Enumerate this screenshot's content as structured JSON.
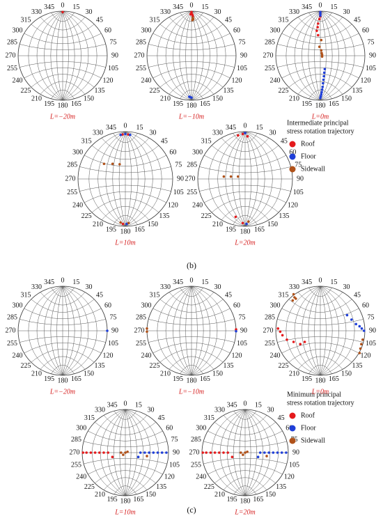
{
  "chart_data": [
    {
      "type": "stereonet",
      "title": "L=−20m",
      "xlim": [
        -1,
        1
      ],
      "ylim": [
        -1,
        1
      ],
      "xticks": [
        0,
        15,
        30,
        45,
        60,
        75,
        90,
        105,
        120,
        135,
        150,
        165,
        180,
        195,
        210,
        225,
        240,
        255,
        270,
        285,
        300,
        315,
        330,
        345
      ],
      "series": [
        {
          "name": "Roof",
          "color": "#e41a1c",
          "x": [
            0
          ],
          "values": [
            0.98
          ]
        }
      ]
    },
    {
      "type": "stereonet",
      "title": "L=−10m",
      "xlim": [
        -1,
        1
      ],
      "ylim": [
        -1,
        1
      ],
      "xticks": [
        0,
        15,
        30,
        45,
        60,
        75,
        90,
        105,
        120,
        135,
        150,
        165,
        180,
        195,
        210,
        225,
        240,
        255,
        270,
        285,
        300,
        315,
        330,
        345
      ],
      "series": [
        {
          "name": "Roof",
          "color": "#e41a1c",
          "x": [
            0,
            0,
            0.02,
            0.03,
            -0.02
          ],
          "values": [
            0.98,
            0.95,
            0.92,
            0.88,
            0.93
          ]
        },
        {
          "name": "Floor",
          "color": "#1f3fd8",
          "x": [
            -0.05,
            -0.03,
            0
          ],
          "values": [
            -0.92,
            -0.93,
            -0.94
          ]
        },
        {
          "name": "Sidewall",
          "color": "#b0521a",
          "x": [
            0.03,
            0.04,
            0.02
          ],
          "values": [
            0.85,
            0.82,
            0.8
          ]
        }
      ]
    },
    {
      "type": "stereonet",
      "title": "L=0m",
      "xlim": [
        -1,
        1
      ],
      "ylim": [
        -1,
        1
      ],
      "xticks": [
        0,
        15,
        30,
        45,
        60,
        75,
        90,
        105,
        120,
        135,
        150,
        165,
        180,
        195,
        210,
        225,
        240,
        255,
        270,
        285,
        300,
        315,
        330,
        345
      ],
      "series": [
        {
          "name": "Roof",
          "color": "#e41a1c",
          "x": [
            0,
            0,
            0,
            -0.02,
            -0.05,
            -0.06,
            -0.08,
            -0.05
          ],
          "values": [
            0.98,
            0.93,
            0.88,
            0.82,
            0.72,
            0.64,
            0.56,
            0.46
          ]
        },
        {
          "name": "Floor",
          "color": "#1f3fd8",
          "x": [
            0,
            0,
            0,
            0.1,
            0.09,
            0.08,
            0.07,
            0.06,
            0.05,
            0.04,
            0.03,
            0.02,
            0.01,
            0
          ],
          "values": [
            0.98,
            0.94,
            0.9,
            -0.3,
            -0.38,
            -0.46,
            -0.54,
            -0.62,
            -0.7,
            -0.76,
            -0.82,
            -0.87,
            -0.91,
            -0.95
          ]
        },
        {
          "name": "Sidewall",
          "color": "#b0521a",
          "x": [
            0.02,
            -0.02,
            0.02,
            0.03,
            0.04,
            0.04
          ],
          "values": [
            0.35,
            0.2,
            0.12,
            0.06,
            0.02,
            -0.02
          ]
        }
      ]
    },
    {
      "type": "stereonet",
      "title": "L=10m",
      "xlim": [
        -1,
        1
      ],
      "ylim": [
        -1,
        1
      ],
      "xticks": [
        0,
        15,
        30,
        45,
        60,
        75,
        90,
        105,
        120,
        135,
        150,
        165,
        180,
        195,
        210,
        225,
        240,
        255,
        270,
        285,
        300,
        315,
        330,
        345
      ],
      "series": [
        {
          "name": "Roof",
          "color": "#e41a1c",
          "x": [
            -0.06,
            0.06,
            -0.05
          ],
          "values": [
            0.94,
            0.94,
            -0.95
          ]
        },
        {
          "name": "Floor",
          "color": "#1f3fd8",
          "x": [
            0,
            0.1,
            -0.1,
            0.03
          ],
          "values": [
            0.95,
            0.93,
            0.93,
            -0.95
          ]
        },
        {
          "name": "Sidewall",
          "color": "#b0521a",
          "x": [
            -0.45,
            -0.27,
            -0.12,
            0.07,
            -0.1
          ],
          "values": [
            0.32,
            0.32,
            0.31,
            -0.93,
            -0.92
          ]
        }
      ]
    },
    {
      "type": "stereonet",
      "title": "L=20m",
      "xlim": [
        -1,
        1
      ],
      "ylim": [
        -1,
        1
      ],
      "xticks": [
        0,
        15,
        30,
        45,
        60,
        75,
        90,
        105,
        120,
        135,
        150,
        165,
        180,
        195,
        210,
        225,
        240,
        255,
        270,
        285,
        300,
        315,
        330,
        345
      ],
      "series": [
        {
          "name": "Roof",
          "color": "#e41a1c",
          "x": [
            -0.15,
            -0.05,
            0.05,
            -0.2,
            -0.05
          ],
          "values": [
            0.92,
            0.95,
            0.9,
            -0.8,
            -0.93
          ]
        },
        {
          "name": "Floor",
          "color": "#1f3fd8",
          "x": [
            0,
            0.03
          ],
          "values": [
            0.97,
            -0.95
          ]
        },
        {
          "name": "Sidewall",
          "color": "#b0521a",
          "x": [
            -0.45,
            -0.3,
            -0.15,
            0.07
          ],
          "values": [
            0.05,
            0.05,
            0.05,
            -0.9
          ]
        }
      ]
    },
    {
      "type": "stereonet",
      "title": "L=−20m",
      "xlim": [
        -1,
        1
      ],
      "ylim": [
        -1,
        1
      ],
      "xticks": [
        0,
        15,
        30,
        45,
        60,
        75,
        90,
        105,
        120,
        135,
        150,
        165,
        180,
        195,
        210,
        225,
        240,
        255,
        270,
        285,
        300,
        315,
        330,
        345
      ],
      "series": [
        {
          "name": "Floor",
          "color": "#1f3fd8",
          "x": [
            1
          ],
          "values": [
            0
          ]
        }
      ]
    },
    {
      "type": "stereonet",
      "title": "L=−10m",
      "xlim": [
        -1,
        1
      ],
      "ylim": [
        -1,
        1
      ],
      "xticks": [
        0,
        15,
        30,
        45,
        60,
        75,
        90,
        105,
        120,
        135,
        150,
        165,
        180,
        195,
        210,
        225,
        240,
        255,
        270,
        285,
        300,
        315,
        330,
        345
      ],
      "series": [
        {
          "name": "Roof",
          "color": "#e41a1c",
          "x": [
            1
          ],
          "values": [
            0.03
          ]
        },
        {
          "name": "Floor",
          "color": "#1f3fd8",
          "x": [
            1
          ],
          "values": [
            -0.01
          ]
        },
        {
          "name": "Sidewall",
          "color": "#b0521a",
          "x": [
            -1,
            -1
          ],
          "values": [
            0.05,
            -0.02
          ]
        }
      ]
    },
    {
      "type": "stereonet",
      "title": "L=0m",
      "xlim": [
        -1,
        1
      ],
      "ylim": [
        -1,
        1
      ],
      "xticks": [
        0,
        15,
        30,
        45,
        60,
        75,
        90,
        105,
        120,
        135,
        150,
        165,
        180,
        195,
        210,
        225,
        240,
        255,
        270,
        285,
        300,
        315,
        330,
        345
      ],
      "series": [
        {
          "name": "Roof",
          "color": "#e41a1c",
          "x": [
            -0.95,
            -0.9,
            -0.85,
            -0.75,
            -0.6,
            -0.45,
            -0.35
          ],
          "values": [
            0.05,
            -0.02,
            -0.1,
            -0.2,
            -0.25,
            -0.3,
            -0.25
          ]
        },
        {
          "name": "Floor",
          "color": "#1f3fd8",
          "x": [
            0.6,
            0.7,
            0.8,
            0.88,
            0.93,
            0.98
          ],
          "values": [
            0.35,
            0.25,
            0.15,
            0.1,
            0.05,
            0
          ]
        },
        {
          "name": "Sidewall",
          "color": "#b0521a",
          "x": [
            -0.6,
            -0.58,
            -0.55,
            -0.62,
            0.95,
            0.92,
            0.9,
            0.88
          ],
          "values": [
            0.82,
            0.75,
            0.72,
            0.68,
            -0.2,
            -0.3,
            -0.4,
            -0.5
          ]
        }
      ]
    },
    {
      "type": "stereonet",
      "title": "L=10m",
      "xlim": [
        -1,
        1
      ],
      "ylim": [
        -1,
        1
      ],
      "xticks": [
        0,
        15,
        30,
        45,
        60,
        75,
        90,
        105,
        120,
        135,
        150,
        165,
        180,
        195,
        210,
        225,
        240,
        255,
        270,
        285,
        300,
        315,
        330,
        345
      ],
      "series": [
        {
          "name": "Roof",
          "color": "#e41a1c",
          "x": [
            -0.98,
            -0.9,
            -0.8,
            -0.7,
            -0.6,
            -0.5,
            -0.4,
            -0.3
          ],
          "values": [
            0,
            0,
            0,
            0,
            0,
            0,
            0,
            -0.1
          ]
        },
        {
          "name": "Floor",
          "color": "#1f3fd8",
          "x": [
            0.35,
            0.45,
            0.55,
            0.65,
            0.75,
            0.85,
            0.95,
            0.3
          ],
          "values": [
            0,
            0,
            0,
            0,
            0,
            0,
            0,
            -0.1
          ]
        },
        {
          "name": "Sidewall",
          "color": "#b0521a",
          "x": [
            -0.1,
            0,
            0.05,
            -0.05,
            0.5
          ],
          "values": [
            0,
            0,
            0.02,
            -0.05,
            -0.08
          ]
        }
      ]
    },
    {
      "type": "stereonet",
      "title": "L=20m",
      "xlim": [
        -1,
        1
      ],
      "ylim": [
        -1,
        1
      ],
      "xticks": [
        0,
        15,
        30,
        45,
        60,
        75,
        90,
        105,
        120,
        135,
        150,
        165,
        180,
        195,
        210,
        225,
        240,
        255,
        270,
        285,
        300,
        315,
        330,
        345
      ],
      "series": [
        {
          "name": "Roof",
          "color": "#e41a1c",
          "x": [
            -0.98,
            -0.9,
            -0.8,
            -0.7,
            -0.6,
            -0.5,
            -0.4,
            -0.3
          ],
          "values": [
            0,
            0,
            0,
            0,
            0,
            0,
            0,
            -0.1
          ]
        },
        {
          "name": "Floor",
          "color": "#1f3fd8",
          "x": [
            0.35,
            0.45,
            0.55,
            0.65,
            0.75,
            0.85,
            0.95,
            0.3
          ],
          "values": [
            0,
            0,
            0,
            0,
            0,
            0,
            0,
            -0.1
          ]
        },
        {
          "name": "Sidewall",
          "color": "#b0521a",
          "x": [
            -0.1,
            0,
            0.05,
            -0.05,
            0.5
          ],
          "values": [
            0,
            0,
            0.02,
            -0.05,
            -0.08
          ]
        }
      ]
    }
  ],
  "panel_labels": [
    "(b)",
    "(c)"
  ],
  "legend_titles": [
    [
      "Intermediate principal",
      "stress rotation trajectory"
    ],
    [
      "Minimum principal",
      "stress rotation trajectory"
    ]
  ]
}
